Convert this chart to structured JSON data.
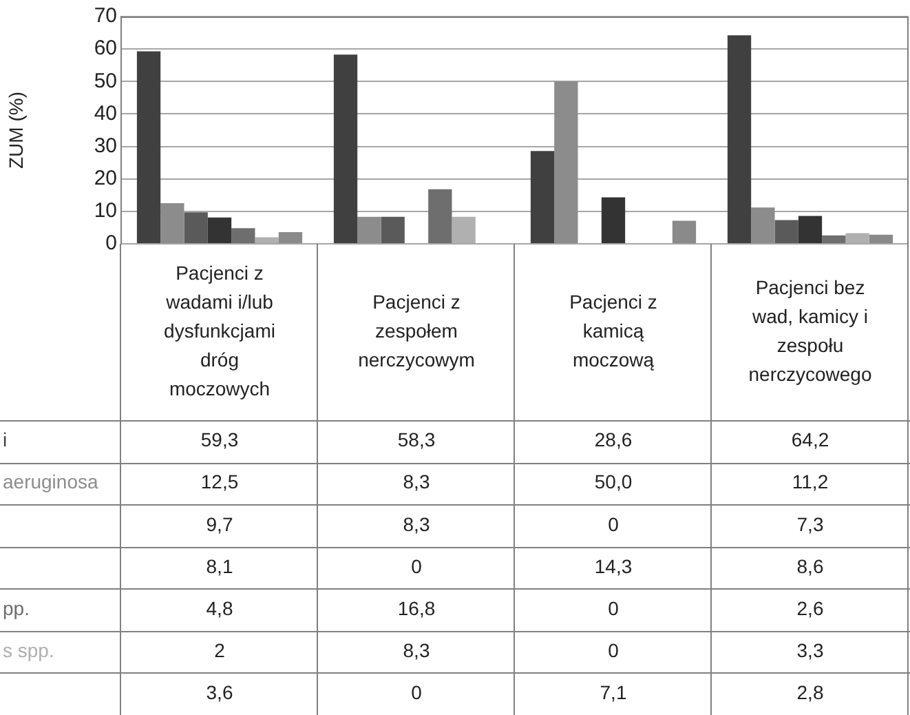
{
  "chart_data": {
    "type": "bar",
    "ylabel": "ZUM (%)",
    "categories": [
      "Pacjenci z wadami i/lub dysfunkcjami dróg moczowych",
      "Pacjenci z zespołem nerczycowym",
      "Pacjenci z kamicą moczową",
      "Pacjenci bez wad, kamicy i zespołu nerczycowego"
    ],
    "series": [
      {
        "name": "i",
        "color": "#404040",
        "values": [
          59.3,
          58.3,
          28.6,
          64.2
        ],
        "value_labels": [
          "59,3",
          "58,3",
          "28,6",
          "64,2"
        ]
      },
      {
        "name": "aeruginosa",
        "color": "#8c8c8c",
        "values": [
          12.5,
          8.3,
          50.0,
          11.2
        ],
        "value_labels": [
          "12,5",
          "8,3",
          "50,0",
          "11,2"
        ]
      },
      {
        "color": "#5a5a5a",
        "values": [
          9.7,
          8.3,
          0,
          7.3
        ],
        "value_labels": [
          "9,7",
          "8,3",
          "0",
          "7,3"
        ]
      },
      {
        "color": "#333333",
        "values": [
          8.1,
          0,
          14.3,
          8.6
        ],
        "value_labels": [
          "8,1",
          "0",
          "14,3",
          "8,6"
        ]
      },
      {
        "name": "pp.",
        "color": "#6e6e6e",
        "values": [
          4.8,
          16.8,
          0,
          2.6
        ],
        "value_labels": [
          "4,8",
          "16,8",
          "0",
          "2,6"
        ]
      },
      {
        "name": "s spp.",
        "color": "#b0b0b0",
        "values": [
          2,
          8.3,
          0,
          3.3
        ],
        "value_labels": [
          "2",
          "8,3",
          "0",
          "3,3"
        ]
      },
      {
        "color": "#8a8a8a",
        "values": [
          3.6,
          0,
          7.1,
          2.8
        ],
        "value_labels": [
          "3,6",
          "0",
          "7,1",
          "2,8"
        ]
      }
    ],
    "ylim": [
      0,
      70
    ],
    "yticks": [
      0,
      10,
      20,
      30,
      40,
      50,
      60,
      70
    ],
    "grid": "y",
    "legend": false
  }
}
